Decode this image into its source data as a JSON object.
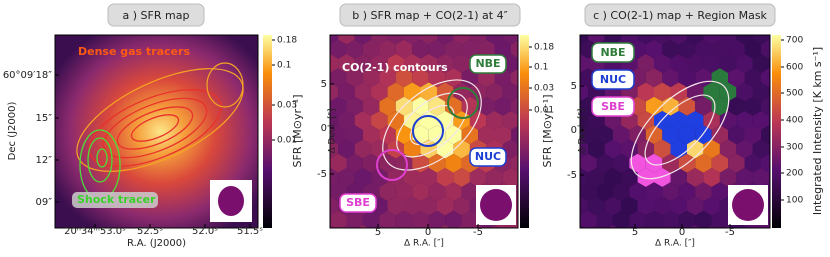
{
  "panels": [
    {
      "title": "a ) SFR map",
      "xlabel": "R.A. (J2000)",
      "ylabel": "Dec (J2000)",
      "xticks": [
        "20ʰ34ᵐ53.0ˢ",
        "52.5ˢ",
        "52.0ˢ",
        "51.5ˢ"
      ],
      "yticks": [
        "60°09′18″",
        "15″",
        "12″",
        "09″"
      ],
      "colorbar_label": "SFR [M⊙yr⁻¹]",
      "colorbar_ticks": [
        "0.18",
        "0.1",
        "0.03",
        "0.01"
      ],
      "annotations": [
        "Dense gas tracers",
        "Shock tracer"
      ]
    },
    {
      "title": "b ) SFR map + CO(2-1) at 4″",
      "xlabel": "Δ R.A. [″]",
      "ylabel": "Δ Decl. [″]",
      "xticks": [
        "5",
        "0",
        "-5"
      ],
      "yticks": [
        "5",
        "0",
        "-5"
      ],
      "colorbar_label": "SFR [M⊙yr⁻¹]",
      "colorbar_ticks": [
        "0.18",
        "0.1",
        "0.03",
        "0.01"
      ],
      "annotations": [
        "CO(2-1) contours",
        "NBE",
        "NUC",
        "SBE"
      ]
    },
    {
      "title": "c ) CO(2-1) map + Region Mask",
      "xlabel": "Δ R.A. [″]",
      "ylabel": "Δ Decl. [″]",
      "xticks": [
        "5",
        "0",
        "-5"
      ],
      "yticks": [
        "5",
        "0",
        "-5"
      ],
      "colorbar_label": "Integrated Intensity [K km s⁻¹]",
      "colorbar_ticks": [
        "700",
        "600",
        "500",
        "400",
        "300",
        "200",
        "100"
      ],
      "annotations": [
        "NBE",
        "NUC",
        "SBE"
      ]
    }
  ]
}
